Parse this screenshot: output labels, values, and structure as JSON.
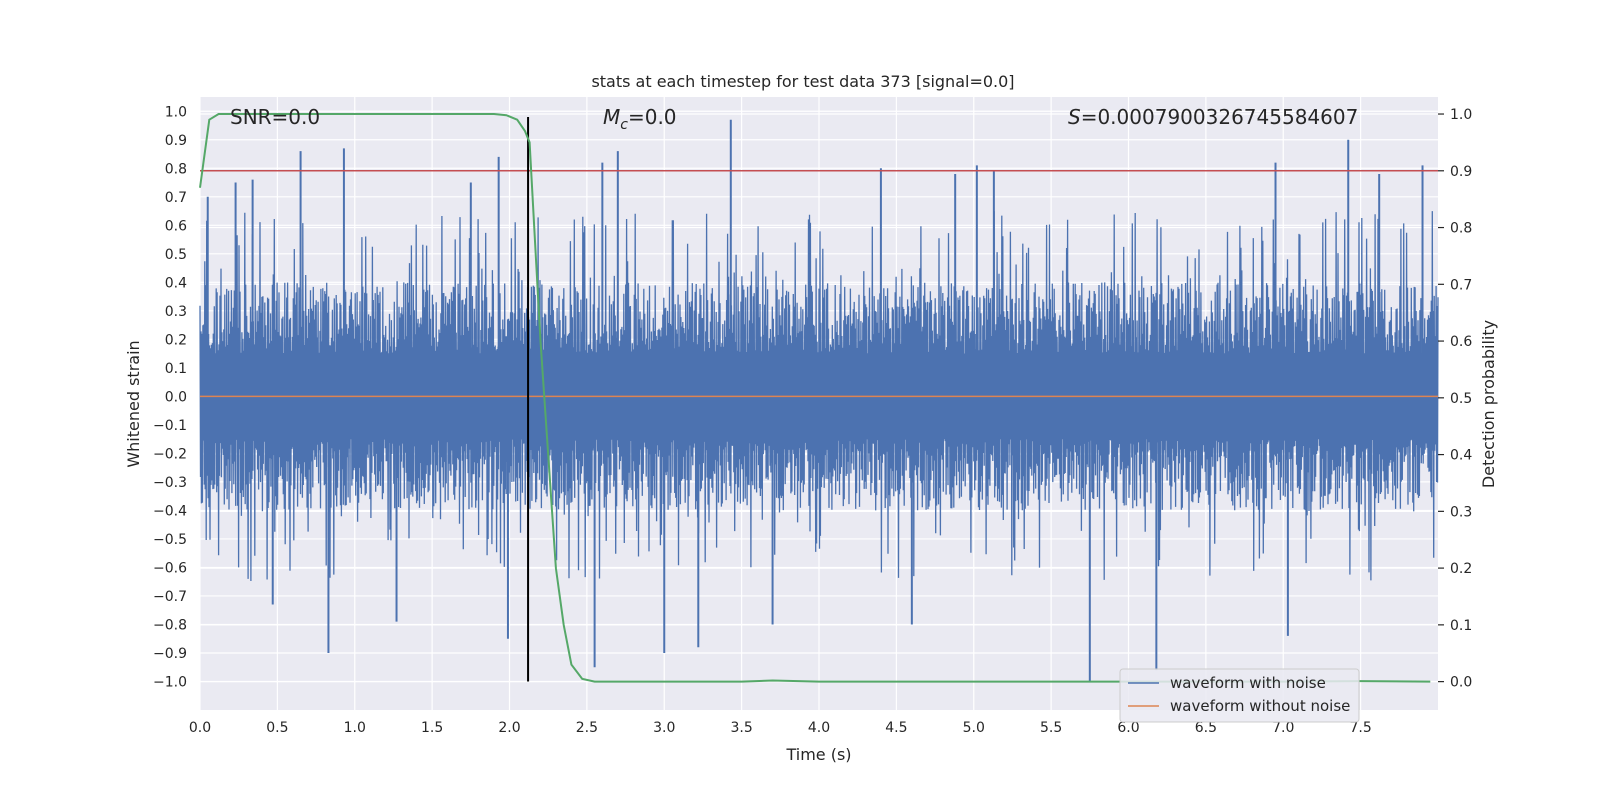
{
  "chart_data": {
    "type": "line",
    "title": "stats at each timestep for test data 373 [signal=0.0]",
    "xlabel": "Time (s)",
    "ylabel_left": "Whitened strain",
    "ylabel_right": "Detection probability",
    "xlim": [
      0.0,
      8.0
    ],
    "ylim_left": [
      -1.1,
      1.05
    ],
    "ylim_right": [
      -0.05,
      1.03
    ],
    "grid": true,
    "x_ticks": [
      "0.0",
      "0.5",
      "1.0",
      "1.5",
      "2.0",
      "2.5",
      "3.0",
      "3.5",
      "4.0",
      "4.5",
      "5.0",
      "5.5",
      "6.0",
      "6.5",
      "7.0",
      "7.5"
    ],
    "y_left_ticks": [
      "1.0",
      "0.9",
      "0.8",
      "0.7",
      "0.6",
      "0.5",
      "0.4",
      "0.3",
      "0.2",
      "0.1",
      "0.0",
      "−0.1",
      "−0.2",
      "−0.3",
      "−0.4",
      "−0.5",
      "−0.6",
      "−0.7",
      "−0.8",
      "−0.9",
      "−1.0"
    ],
    "y_right_ticks": [
      "1.0",
      "0.9",
      "0.8",
      "0.7",
      "0.6",
      "0.5",
      "0.4",
      "0.3",
      "0.2",
      "0.1",
      "0.0"
    ],
    "annotations": {
      "snr": "SNR=0.0",
      "mc_symbol": "M",
      "mc_sub": "c",
      "mc_value": "=0.0",
      "s_symbol": "S",
      "s_value": "=0.0007900326745584607"
    },
    "legend": {
      "placement": "lower-right",
      "entries": [
        "waveform with noise",
        "waveform without noise"
      ]
    },
    "series": [
      {
        "name": "waveform with noise",
        "axis": "left",
        "color": "#4c72b0",
        "style": "dense noise",
        "core_envelope": [
          -0.4,
          0.4
        ],
        "peak_spikes": [
          {
            "t": 0.05,
            "v": 0.7
          },
          {
            "t": 0.23,
            "v": 0.75
          },
          {
            "t": 0.34,
            "v": 0.76
          },
          {
            "t": 0.47,
            "v": -0.73
          },
          {
            "t": 0.65,
            "v": 0.86
          },
          {
            "t": 0.83,
            "v": -0.9
          },
          {
            "t": 0.93,
            "v": 0.87
          },
          {
            "t": 1.27,
            "v": -0.79
          },
          {
            "t": 1.75,
            "v": 0.75
          },
          {
            "t": 1.93,
            "v": 0.84
          },
          {
            "t": 1.99,
            "v": -0.85
          },
          {
            "t": 2.55,
            "v": -0.95
          },
          {
            "t": 2.6,
            "v": 0.82
          },
          {
            "t": 2.7,
            "v": 0.86
          },
          {
            "t": 3.0,
            "v": -0.9
          },
          {
            "t": 3.22,
            "v": -0.88
          },
          {
            "t": 3.43,
            "v": 0.97
          },
          {
            "t": 3.7,
            "v": -0.8
          },
          {
            "t": 4.4,
            "v": 0.8
          },
          {
            "t": 4.6,
            "v": -0.8
          },
          {
            "t": 4.88,
            "v": 0.78
          },
          {
            "t": 5.02,
            "v": 0.81
          },
          {
            "t": 5.13,
            "v": 0.79
          },
          {
            "t": 5.75,
            "v": -1.0
          },
          {
            "t": 6.18,
            "v": -0.96
          },
          {
            "t": 6.95,
            "v": 0.82
          },
          {
            "t": 7.03,
            "v": -0.84
          },
          {
            "t": 7.42,
            "v": 0.9
          },
          {
            "t": 7.62,
            "v": 0.78
          },
          {
            "t": 7.9,
            "v": 0.81
          }
        ]
      },
      {
        "name": "waveform without noise",
        "axis": "left",
        "color": "#dd8452",
        "constant": 0.0
      },
      {
        "name": "detection probability",
        "axis": "right",
        "color": "#55a868",
        "x": [
          0.0,
          0.06,
          0.12,
          0.3,
          1.0,
          1.5,
          1.9,
          1.98,
          2.05,
          2.1,
          2.13,
          2.17,
          2.2,
          2.25,
          2.3,
          2.35,
          2.4,
          2.47,
          2.55,
          3.0,
          3.5,
          3.7,
          4.0,
          5.0,
          6.0,
          7.0,
          7.5,
          7.95
        ],
        "y": [
          0.87,
          0.99,
          1.0,
          1.0,
          1.0,
          1.0,
          1.0,
          0.998,
          0.99,
          0.97,
          0.95,
          0.75,
          0.6,
          0.4,
          0.2,
          0.1,
          0.03,
          0.005,
          0.0,
          0.0,
          0.0,
          0.002,
          0.0,
          0.0,
          0.0,
          0.0,
          0.001,
          0.0
        ]
      },
      {
        "name": "threshold",
        "axis": "right",
        "color": "#c44e52",
        "constant": 0.9
      },
      {
        "name": "trigger time",
        "axis": "left",
        "color": "#000000",
        "vertical_at": 2.12,
        "y_range": [
          -1.0,
          0.98
        ]
      }
    ]
  }
}
